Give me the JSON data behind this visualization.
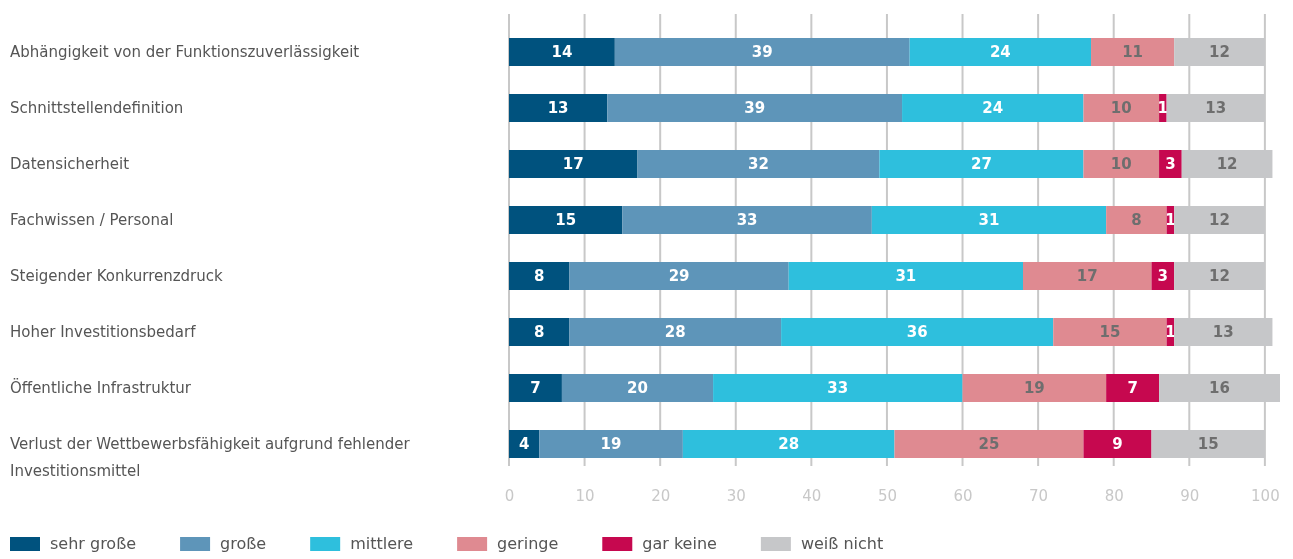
{
  "chart_data": {
    "type": "bar",
    "orientation": "horizontal",
    "stacked": true,
    "data_labels": true,
    "grid": "x",
    "legend": "bottom",
    "categories": [
      "Abhängigkeit von der Funktionszuverlässigkeit",
      "Schnittstellendefinition",
      "Datensicherheit",
      "Fachwissen / Personal",
      "Steigender Konkurrenzdruck",
      "Hoher Investitionsbedarf",
      "Öffentliche Infrastruktur",
      "Verlust der Wettbewerbsfähigkeit aufgrund fehlender Investitionsmittel"
    ],
    "xlim": [
      0,
      102
    ],
    "xticks": [
      0,
      10,
      20,
      30,
      40,
      50,
      60,
      70,
      80,
      90,
      100
    ],
    "series": [
      {
        "name": "sehr große",
        "color": "#00527e",
        "values": [
          14,
          13,
          17,
          15,
          8,
          8,
          7,
          4
        ]
      },
      {
        "name": "große",
        "color": "#5e95b9",
        "values": [
          39,
          39,
          32,
          33,
          29,
          28,
          20,
          19
        ]
      },
      {
        "name": "mittlere",
        "color": "#2ebfdd",
        "values": [
          24,
          24,
          27,
          31,
          31,
          36,
          33,
          28
        ]
      },
      {
        "name": "geringe",
        "color": "#df8a91",
        "values": [
          11,
          10,
          10,
          8,
          17,
          15,
          19,
          25
        ]
      },
      {
        "name": "gar keine",
        "color": "#c6084f",
        "values": [
          null,
          1,
          3,
          1,
          3,
          1,
          7,
          9
        ]
      },
      {
        "name": "weiß nicht",
        "color": "#c6c7c9",
        "values": [
          12,
          13,
          12,
          12,
          12,
          13,
          16,
          15
        ]
      }
    ]
  }
}
